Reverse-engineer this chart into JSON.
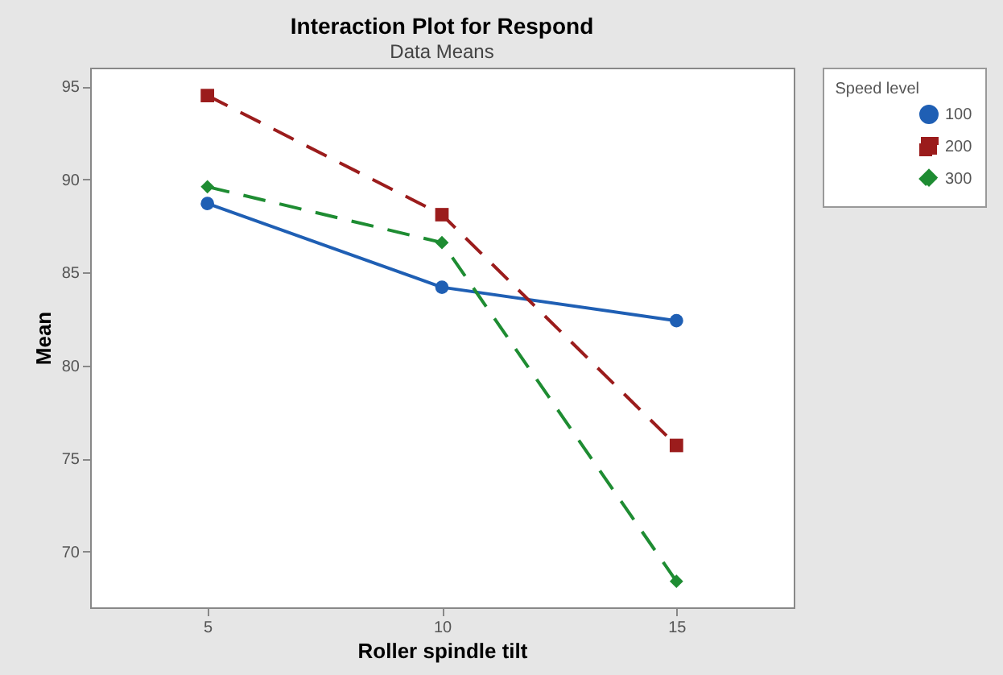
{
  "chart_data": {
    "type": "line",
    "title": "Interaction Plot for Respond",
    "subtitle": "Data Means",
    "xlabel": "Roller spindle tilt",
    "ylabel": "Mean",
    "legend_title": "Speed level",
    "x": [
      5,
      10,
      15
    ],
    "xlim": [
      2.5,
      17.5
    ],
    "xticks": [
      5,
      10,
      15
    ],
    "ylim": [
      67,
      96
    ],
    "yticks": [
      70,
      75,
      80,
      85,
      90,
      95
    ],
    "grid": false,
    "legend": "top right",
    "series": [
      {
        "name": "100",
        "color": "#1f5fb4",
        "marker": "circle",
        "line_style": "solid",
        "values": [
          88.7,
          84.2,
          82.4
        ]
      },
      {
        "name": "200",
        "color": "#9b1c1c",
        "marker": "square",
        "line_style": "dashed",
        "values": [
          94.5,
          88.1,
          75.7
        ]
      },
      {
        "name": "300",
        "color": "#1e8c32",
        "marker": "diamond",
        "line_style": "dashed",
        "values": [
          89.6,
          86.6,
          68.4
        ]
      }
    ]
  }
}
